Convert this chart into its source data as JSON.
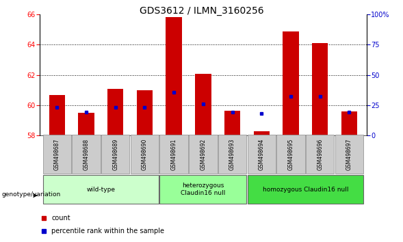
{
  "title": "GDS3612 / ILMN_3160256",
  "samples": [
    "GSM498687",
    "GSM498688",
    "GSM498689",
    "GSM498690",
    "GSM498691",
    "GSM498692",
    "GSM498693",
    "GSM498694",
    "GSM498695",
    "GSM498696",
    "GSM498697"
  ],
  "red_values": [
    60.7,
    59.5,
    61.1,
    61.0,
    65.85,
    62.1,
    59.65,
    58.3,
    64.9,
    64.1,
    59.6
  ],
  "blue_values": [
    59.85,
    59.55,
    59.85,
    59.85,
    60.85,
    60.1,
    59.55,
    59.45,
    60.6,
    60.6,
    59.55
  ],
  "ylim_left": [
    58,
    66
  ],
  "ylim_right": [
    0,
    100
  ],
  "yticks_left": [
    58,
    60,
    62,
    64,
    66
  ],
  "yticks_right": [
    0,
    25,
    50,
    75,
    100
  ],
  "groups": [
    {
      "label": "wild-type",
      "start": 0,
      "end": 3,
      "color": "#ccffcc"
    },
    {
      "label": "heterozygous\nClaudin16 null",
      "start": 4,
      "end": 6,
      "color": "#99ff99"
    },
    {
      "label": "homozygous Claudin16 null",
      "start": 7,
      "end": 10,
      "color": "#44dd44"
    }
  ],
  "bar_width": 0.55,
  "bar_color_red": "#cc0000",
  "dot_color_blue": "#0000cc",
  "baseline": 58,
  "legend_count_label": "count",
  "legend_pct_label": "percentile rank within the sample",
  "genotype_label": "genotype/variation",
  "title_fontsize": 10,
  "tick_fontsize": 7,
  "right_axis_color": "#0000cc",
  "sample_box_color": "#cccccc",
  "sample_box_edge_color": "#888888"
}
